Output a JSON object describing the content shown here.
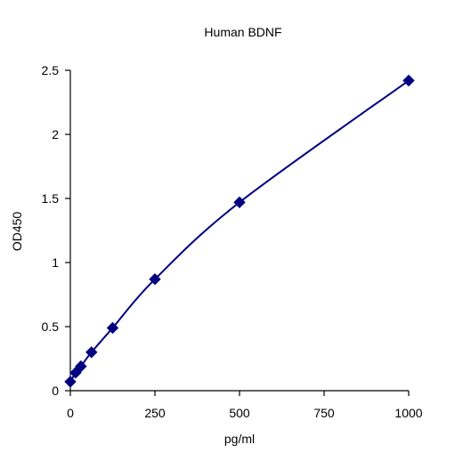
{
  "chart_data": {
    "type": "scatter",
    "title": "Human BDNF",
    "xlabel": "pg/ml",
    "ylabel": "OD450",
    "xlim": [
      0,
      1000
    ],
    "ylim": [
      0,
      2.5
    ],
    "xticks": [
      0,
      250,
      500,
      750,
      1000
    ],
    "yticks": [
      0,
      0.5,
      1,
      1.5,
      2,
      2.5
    ],
    "x_tick_labels": [
      "0",
      "250",
      "500",
      "750",
      "1000"
    ],
    "y_tick_labels": [
      "0",
      "0.5",
      "1",
      "1.5",
      "2",
      "2.5"
    ],
    "grid": false,
    "legend": "none",
    "series": [
      {
        "color": "#000080",
        "marker": "diamond",
        "fit_line": "smooth curve",
        "points": [
          {
            "x": 0,
            "y": 0.07
          },
          {
            "x": 15.6,
            "y": 0.14
          },
          {
            "x": 31.25,
            "y": 0.19
          },
          {
            "x": 62.5,
            "y": 0.3
          },
          {
            "x": 125,
            "y": 0.49
          },
          {
            "x": 250,
            "y": 0.87
          },
          {
            "x": 500,
            "y": 1.47
          },
          {
            "x": 1000,
            "y": 2.42
          }
        ]
      }
    ]
  }
}
